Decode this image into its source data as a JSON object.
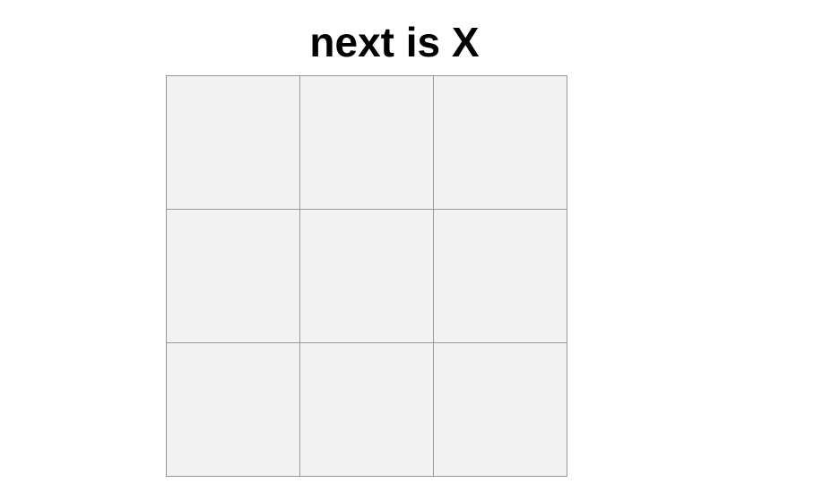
{
  "status": {
    "prefix": "next is",
    "player": "X"
  },
  "board": {
    "cells": [
      "",
      "",
      "",
      "",
      "",
      "",
      "",
      "",
      ""
    ]
  },
  "colors": {
    "cell_background": "#f3f2f2",
    "grid_line": "#9a9a9a",
    "text": "#000000"
  }
}
